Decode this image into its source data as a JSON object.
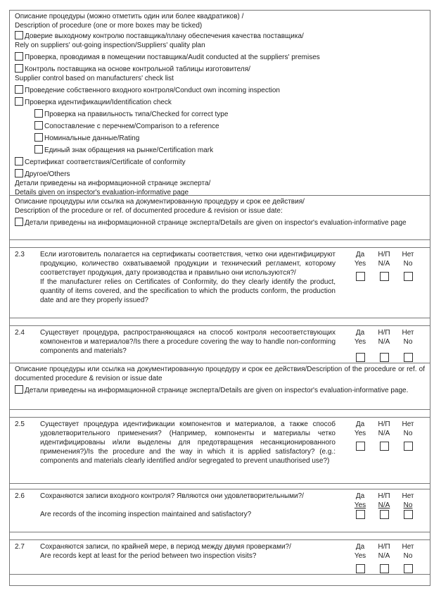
{
  "sec1": {
    "title_ru": "Описание процедуры (можно отметить один или более квадратиков) /",
    "title_en": "Description of procedure (one or more boxes may be ticked)",
    "items": [
      {
        "ru": "Доверие выходному контролю поставщика/плану обеспечения качества поставщика/",
        "en": "Rely on suppliers' out-going inspection/Suppliers' quality plan"
      },
      {
        "ru": "Проверка, проводимая в помещении поставщика/Audit conducted at the suppliers' premises"
      },
      {
        "ru": "Контроль поставщика на основе контрольной таблицы изготовителя/",
        "en": "Supplier control based on manufacturers' check list"
      },
      {
        "ru": "Проведение собственного входного контроля/Conduct own incoming inspection"
      },
      {
        "ru": "Проверка идентификации/Identification check"
      }
    ],
    "subitems": [
      "Проверка на правильность типа/Checked for correct type",
      "Сопоставление с перечнем/Comparison to a reference",
      "Номинальные данные/Rating",
      "Единый знак обращения на рынке/Certification mark"
    ],
    "cert": "Сертификат соответствия/Certificate of conformity",
    "other": "Другое/Others",
    "details_ru": "Детали приведены на информационной странице эксперта/",
    "details_en": "Details given on inspector's evaluation-informative page"
  },
  "sec2": {
    "line1": "Описание процедуры или ссылка на документированную процедуру и срок ее действия/",
    "line2": "Description of the procedure or ref. of documented procedure & revision or issue date:",
    "details": "Детали приведены на информационной странице эксперта/Details are given on inspector's evaluation-informative page"
  },
  "answers": {
    "yes_ru": "Да",
    "yes_en": "Yes",
    "na_ru": "Н/П",
    "na_en": "N/A",
    "no_ru": "Нет",
    "no_en": "No"
  },
  "q23": {
    "num": "2.3",
    "ru": "Если изготовитель полагается на сертификаты соответствия, четко они идентифицируют продукцию, количество охватываемой продукции и технический регламент, которому соответствует продукция, дату производства и правильно они используются?/",
    "en": "If the manufacturer relies on Certificates of Conformity, do they clearly identify the product, quantity of items covered, and the specification to which the products conform, the production date and are they properly issued?"
  },
  "q24": {
    "num": "2.4",
    "text": "Существует процедура, распространяющаяся на способ контроля несоответствующих компонентов и материалов?/Is there a procedure covering the way to handle non-conforming components and materials?"
  },
  "sec3": {
    "desc": "Описание процедуры или ссылка на документированную процедуру и срок ее действия/Description of the procedure or ref. of documented procedure & revision or issue date",
    "details": "Детали приведены на информационной странице эксперта/Details are given on inspector's evaluation-informative page."
  },
  "q25": {
    "num": "2.5",
    "text": "Существует процедура идентификации компонентов и материалов, а также способ удовлетворительного применения? (Например, компоненты и материалы четко идентифицированы и/или выделены для предотвращения несанкционированного применения?)/Is the procedure and the way in which it is applied satisfactory? (e.g.: components and materials clearly identified and/or segregated to prevent unauthorised use?)"
  },
  "q26": {
    "num": "2.6",
    "ru": "Сохраняются записи входного контроля? Являются они удовлетворительными?/",
    "en": "Are records of the incoming inspection maintained and satisfactory?"
  },
  "q27": {
    "num": "2.7",
    "ru": "Сохраняются записи, по крайней мере, в период между двумя проверками?/",
    "en": "Are records kept at least for the period between two inspection visits?"
  }
}
